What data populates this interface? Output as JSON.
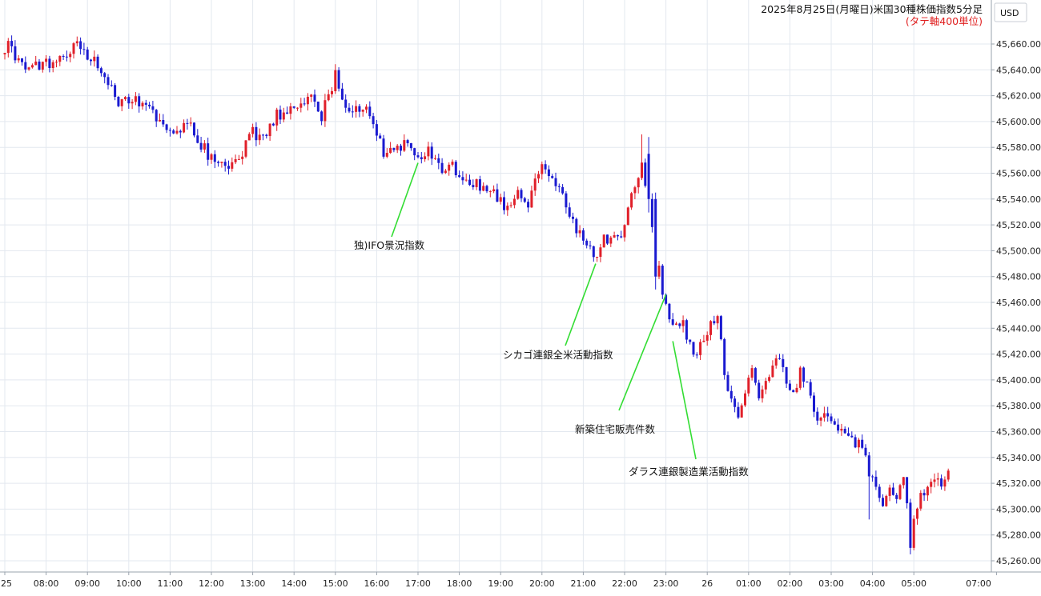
{
  "chart_data": {
    "type": "candlestick",
    "title": "2025年8月25日(月曜日)米国30種株価指数5分足",
    "subtitle": "(タテ軸400単位)",
    "currency": "USD",
    "ylim": [
      45250,
      45690
    ],
    "grid": true,
    "colors": {
      "up": "#e0202a",
      "down": "#1a1ad0",
      "grid": "#e3e8ef",
      "annotation_line": "#33dd33",
      "subtitle": "#e02020"
    },
    "y_ticks": [
      "45,260.00",
      "45,280.00",
      "45,300.00",
      "45,320.00",
      "45,340.00",
      "45,360.00",
      "45,380.00",
      "45,400.00",
      "45,420.00",
      "45,440.00",
      "45,460.00",
      "45,480.00",
      "45,500.00",
      "45,520.00",
      "45,540.00",
      "45,560.00",
      "45,580.00",
      "45,600.00",
      "45,620.00",
      "45,640.00",
      "45,660.00"
    ],
    "y_tick_values": [
      45260,
      45280,
      45300,
      45320,
      45340,
      45360,
      45380,
      45400,
      45420,
      45440,
      45460,
      45480,
      45500,
      45520,
      45540,
      45560,
      45580,
      45600,
      45620,
      45640,
      45660
    ],
    "x_ticks": [
      {
        "label": "25",
        "t": 0
      },
      {
        "label": "08:00",
        "t": 60
      },
      {
        "label": "09:00",
        "t": 120
      },
      {
        "label": "10:00",
        "t": 180
      },
      {
        "label": "11:00",
        "t": 240
      },
      {
        "label": "12:00",
        "t": 300
      },
      {
        "label": "13:00",
        "t": 360
      },
      {
        "label": "14:00",
        "t": 420
      },
      {
        "label": "15:00",
        "t": 480
      },
      {
        "label": "16:00",
        "t": 540
      },
      {
        "label": "17:00",
        "t": 600
      },
      {
        "label": "18:00",
        "t": 660
      },
      {
        "label": "19:00",
        "t": 720
      },
      {
        "label": "20:00",
        "t": 780
      },
      {
        "label": "21:00",
        "t": 840
      },
      {
        "label": "22:00",
        "t": 900
      },
      {
        "label": "23:00",
        "t": 960
      },
      {
        "label": "26",
        "t": 1020
      },
      {
        "label": "01:00",
        "t": 1080
      },
      {
        "label": "02:00",
        "t": 1140
      },
      {
        "label": "03:00",
        "t": 1200
      },
      {
        "label": "04:00",
        "t": 1260
      },
      {
        "label": "05:00",
        "t": 1320
      },
      {
        "label": "07:00",
        "t": 1440
      }
    ],
    "anchors": [
      {
        "t": 0,
        "c": 45652
      },
      {
        "t": 5,
        "c": 45660
      },
      {
        "t": 25,
        "c": 45642
      },
      {
        "t": 55,
        "c": 45645
      },
      {
        "t": 90,
        "c": 45648
      },
      {
        "t": 105,
        "c": 45660
      },
      {
        "t": 120,
        "c": 45652
      },
      {
        "t": 135,
        "c": 45645
      },
      {
        "t": 150,
        "c": 45628
      },
      {
        "t": 165,
        "c": 45615
      },
      {
        "t": 185,
        "c": 45618
      },
      {
        "t": 215,
        "c": 45608
      },
      {
        "t": 235,
        "c": 45595
      },
      {
        "t": 250,
        "c": 45590
      },
      {
        "t": 265,
        "c": 45600
      },
      {
        "t": 285,
        "c": 45582
      },
      {
        "t": 310,
        "c": 45565
      },
      {
        "t": 325,
        "c": 45563
      },
      {
        "t": 340,
        "c": 45570
      },
      {
        "t": 355,
        "c": 45592
      },
      {
        "t": 375,
        "c": 45588
      },
      {
        "t": 395,
        "c": 45605
      },
      {
        "t": 420,
        "c": 45610
      },
      {
        "t": 445,
        "c": 45618
      },
      {
        "t": 460,
        "c": 45605
      },
      {
        "t": 475,
        "c": 45625
      },
      {
        "t": 480,
        "c": 45638
      },
      {
        "t": 490,
        "c": 45612
      },
      {
        "t": 510,
        "c": 45612
      },
      {
        "t": 530,
        "c": 45605
      },
      {
        "t": 550,
        "c": 45575
      },
      {
        "t": 565,
        "c": 45578
      },
      {
        "t": 580,
        "c": 45582
      },
      {
        "t": 590,
        "c": 45575
      },
      {
        "t": 600,
        "c": 45570
      },
      {
        "t": 615,
        "c": 45578
      },
      {
        "t": 630,
        "c": 45565
      },
      {
        "t": 650,
        "c": 45565
      },
      {
        "t": 670,
        "c": 45555
      },
      {
        "t": 690,
        "c": 45550
      },
      {
        "t": 710,
        "c": 45545
      },
      {
        "t": 725,
        "c": 45535
      },
      {
        "t": 735,
        "c": 45535
      },
      {
        "t": 745,
        "c": 45545
      },
      {
        "t": 760,
        "c": 45535
      },
      {
        "t": 775,
        "c": 45560
      },
      {
        "t": 785,
        "c": 45565
      },
      {
        "t": 800,
        "c": 45550
      },
      {
        "t": 810,
        "c": 45545
      },
      {
        "t": 825,
        "c": 45520
      },
      {
        "t": 840,
        "c": 45510
      },
      {
        "t": 850,
        "c": 45502
      },
      {
        "t": 858,
        "c": 45492
      },
      {
        "t": 870,
        "c": 45510
      },
      {
        "t": 885,
        "c": 45510
      },
      {
        "t": 895,
        "c": 45515
      },
      {
        "t": 905,
        "c": 45530
      },
      {
        "t": 915,
        "c": 45550
      },
      {
        "t": 925,
        "c": 45568
      },
      {
        "t": 935,
        "c": 45535
      },
      {
        "t": 945,
        "c": 45500
      },
      {
        "t": 955,
        "c": 45470
      },
      {
        "t": 965,
        "c": 45450
      },
      {
        "t": 975,
        "c": 45440
      },
      {
        "t": 985,
        "c": 45445
      },
      {
        "t": 995,
        "c": 45425
      },
      {
        "t": 1005,
        "c": 45420
      },
      {
        "t": 1015,
        "c": 45430
      },
      {
        "t": 1025,
        "c": 45445
      },
      {
        "t": 1035,
        "c": 45450
      },
      {
        "t": 1045,
        "c": 45405
      },
      {
        "t": 1055,
        "c": 45385
      },
      {
        "t": 1065,
        "c": 45375
      },
      {
        "t": 1075,
        "c": 45390
      },
      {
        "t": 1085,
        "c": 45405
      },
      {
        "t": 1095,
        "c": 45390
      },
      {
        "t": 1105,
        "c": 45395
      },
      {
        "t": 1115,
        "c": 45408
      },
      {
        "t": 1125,
        "c": 45420
      },
      {
        "t": 1135,
        "c": 45400
      },
      {
        "t": 1145,
        "c": 45390
      },
      {
        "t": 1155,
        "c": 45405
      },
      {
        "t": 1165,
        "c": 45395
      },
      {
        "t": 1175,
        "c": 45375
      },
      {
        "t": 1185,
        "c": 45372
      },
      {
        "t": 1195,
        "c": 45368
      },
      {
        "t": 1205,
        "c": 45365
      },
      {
        "t": 1215,
        "c": 45360
      },
      {
        "t": 1225,
        "c": 45355
      },
      {
        "t": 1235,
        "c": 45350
      },
      {
        "t": 1245,
        "c": 45350
      },
      {
        "t": 1255,
        "c": 45330
      },
      {
        "t": 1265,
        "c": 45320
      },
      {
        "t": 1275,
        "c": 45305
      },
      {
        "t": 1285,
        "c": 45320
      },
      {
        "t": 1295,
        "c": 45310
      },
      {
        "t": 1305,
        "c": 45320
      },
      {
        "t": 1315,
        "c": 45280
      },
      {
        "t": 1325,
        "c": 45305
      },
      {
        "t": 1335,
        "c": 45315
      },
      {
        "t": 1345,
        "c": 45320
      },
      {
        "t": 1355,
        "c": 45320
      },
      {
        "t": 1365,
        "c": 45322
      },
      {
        "t": 1370,
        "c": 45330
      }
    ],
    "annotations": [
      {
        "text": "独)IFO景況指数",
        "t": 600,
        "y": 45568
      },
      {
        "text": "シカゴ連銀全米活動指数",
        "t": 858,
        "y": 45490
      },
      {
        "text": "新築住宅販売件数",
        "t": 960,
        "y": 45466
      },
      {
        "text": "ダラス連銀製造業活動指数",
        "t": 970,
        "y": 45430
      }
    ]
  }
}
